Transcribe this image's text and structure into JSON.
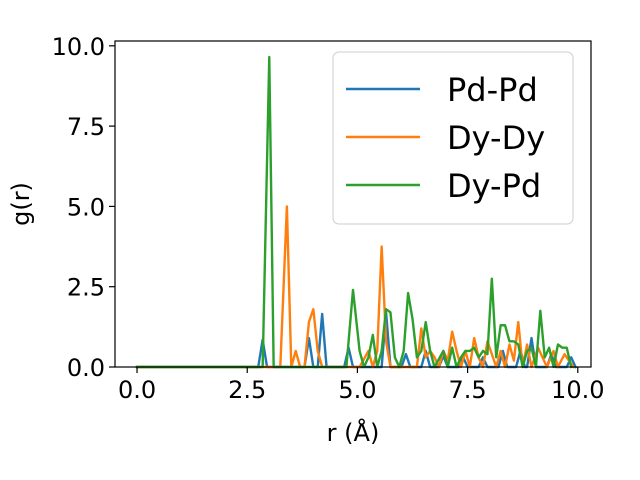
{
  "chart_data": {
    "type": "line",
    "xlabel": "r (Å)",
    "ylabel": "g(r)",
    "xlim": [
      -0.5,
      10.3
    ],
    "ylim": [
      0,
      10.15
    ],
    "xticks": [
      0.0,
      2.5,
      5.0,
      7.5,
      10.0
    ],
    "yticks": [
      0.0,
      2.5,
      5.0,
      7.5,
      10.0
    ],
    "xtick_labels": [
      "0.0",
      "2.5",
      "5.0",
      "7.5",
      "10.0"
    ],
    "ytick_labels": [
      "0.0",
      "2.5",
      "5.0",
      "7.5",
      "10.0"
    ],
    "grid": false,
    "legend": "top-right",
    "series": [
      {
        "name": "Pd-Pd",
        "color": "#1f77b4",
        "points": [
          [
            0.0,
            0
          ],
          [
            2.75,
            0
          ],
          [
            2.85,
            0.85
          ],
          [
            2.95,
            0
          ],
          [
            3.8,
            0
          ],
          [
            3.9,
            0.9
          ],
          [
            4.0,
            0
          ],
          [
            4.1,
            0
          ],
          [
            4.2,
            1.65
          ],
          [
            4.3,
            0
          ],
          [
            4.7,
            0
          ],
          [
            4.8,
            0.6
          ],
          [
            4.9,
            0
          ],
          [
            5.55,
            0
          ],
          [
            5.65,
            1.7
          ],
          [
            5.75,
            0
          ],
          [
            6.0,
            0
          ],
          [
            6.1,
            0.4
          ],
          [
            6.2,
            0
          ],
          [
            6.45,
            0
          ],
          [
            6.55,
            0.5
          ],
          [
            6.65,
            0
          ],
          [
            6.85,
            0
          ],
          [
            6.95,
            0.35
          ],
          [
            7.05,
            0
          ],
          [
            7.3,
            0
          ],
          [
            7.4,
            0.3
          ],
          [
            7.5,
            0
          ],
          [
            7.75,
            0
          ],
          [
            7.85,
            0.3
          ],
          [
            7.95,
            0
          ],
          [
            8.2,
            0
          ],
          [
            8.3,
            0.5
          ],
          [
            8.4,
            0
          ],
          [
            8.6,
            0
          ],
          [
            8.7,
            0.5
          ],
          [
            8.8,
            0
          ],
          [
            8.85,
            0
          ],
          [
            8.95,
            0.9
          ],
          [
            9.05,
            0
          ],
          [
            9.3,
            0
          ],
          [
            9.4,
            0.4
          ],
          [
            9.5,
            0
          ],
          [
            9.75,
            0
          ],
          [
            9.85,
            0.3
          ],
          [
            9.95,
            0
          ]
        ]
      },
      {
        "name": "Dy-Dy",
        "color": "#ff7f0e",
        "points": [
          [
            0.0,
            0
          ],
          [
            3.25,
            0
          ],
          [
            3.4,
            5.0
          ],
          [
            3.5,
            0
          ],
          [
            3.6,
            0.5
          ],
          [
            3.7,
            0
          ],
          [
            3.8,
            0
          ],
          [
            3.9,
            1.4
          ],
          [
            4.0,
            1.8
          ],
          [
            4.1,
            0.5
          ],
          [
            4.2,
            0
          ],
          [
            5.05,
            0
          ],
          [
            5.25,
            0.5
          ],
          [
            5.35,
            0
          ],
          [
            5.45,
            0.5
          ],
          [
            5.55,
            3.75
          ],
          [
            5.65,
            0.8
          ],
          [
            5.75,
            0
          ],
          [
            6.35,
            0
          ],
          [
            6.45,
            1.2
          ],
          [
            6.55,
            0.3
          ],
          [
            6.65,
            0.5
          ],
          [
            6.75,
            0.3
          ],
          [
            6.85,
            0
          ],
          [
            6.95,
            0.5
          ],
          [
            7.05,
            0.2
          ],
          [
            7.15,
            1.1
          ],
          [
            7.25,
            0.5
          ],
          [
            7.35,
            0
          ],
          [
            7.45,
            0.5
          ],
          [
            7.55,
            0
          ],
          [
            7.65,
            0.9
          ],
          [
            7.75,
            0.3
          ],
          [
            7.85,
            0
          ],
          [
            7.95,
            0.8
          ],
          [
            8.05,
            0.4
          ],
          [
            8.15,
            0
          ],
          [
            8.25,
            0.5
          ],
          [
            8.35,
            0
          ],
          [
            8.45,
            0.7
          ],
          [
            8.55,
            0.2
          ],
          [
            8.65,
            1.4
          ],
          [
            8.75,
            0
          ],
          [
            8.85,
            0.7
          ],
          [
            8.95,
            0
          ],
          [
            9.1,
            0.6
          ],
          [
            9.2,
            0.3
          ],
          [
            9.3,
            0
          ],
          [
            9.45,
            0.5
          ],
          [
            9.55,
            0
          ],
          [
            9.7,
            0.4
          ],
          [
            9.8,
            0.2
          ],
          [
            9.9,
            0
          ]
        ]
      },
      {
        "name": "Dy-Pd",
        "color": "#2ca02c",
        "points": [
          [
            0.0,
            0
          ],
          [
            2.85,
            0
          ],
          [
            3.0,
            9.65
          ],
          [
            3.1,
            0
          ],
          [
            4.75,
            0
          ],
          [
            4.9,
            2.4
          ],
          [
            5.05,
            0.5
          ],
          [
            5.15,
            0
          ],
          [
            5.25,
            0.3
          ],
          [
            5.35,
            1.0
          ],
          [
            5.45,
            0
          ],
          [
            5.55,
            0.5
          ],
          [
            5.65,
            1.8
          ],
          [
            5.75,
            1.7
          ],
          [
            5.85,
            0.3
          ],
          [
            5.95,
            0
          ],
          [
            6.05,
            0.5
          ],
          [
            6.15,
            2.3
          ],
          [
            6.25,
            1.5
          ],
          [
            6.35,
            0.3
          ],
          [
            6.45,
            0.5
          ],
          [
            6.55,
            1.4
          ],
          [
            6.65,
            0.5
          ],
          [
            6.75,
            0
          ],
          [
            6.95,
            0.5
          ],
          [
            7.05,
            0
          ],
          [
            7.15,
            0.6
          ],
          [
            7.25,
            0
          ],
          [
            7.35,
            0.3
          ],
          [
            7.45,
            0.5
          ],
          [
            7.55,
            0.5
          ],
          [
            7.65,
            0.6
          ],
          [
            7.75,
            0.3
          ],
          [
            7.85,
            0.5
          ],
          [
            7.95,
            0.4
          ],
          [
            8.05,
            2.75
          ],
          [
            8.15,
            0.3
          ],
          [
            8.25,
            1.3
          ],
          [
            8.35,
            1.3
          ],
          [
            8.45,
            0.8
          ],
          [
            8.55,
            0.8
          ],
          [
            8.65,
            0.7
          ],
          [
            8.75,
            0
          ],
          [
            8.85,
            0.5
          ],
          [
            8.95,
            0.6
          ],
          [
            9.05,
            0
          ],
          [
            9.15,
            1.75
          ],
          [
            9.25,
            0.3
          ],
          [
            9.35,
            0.6
          ],
          [
            9.45,
            0
          ],
          [
            9.55,
            0.7
          ],
          [
            9.65,
            0.6
          ],
          [
            9.75,
            0.6
          ],
          [
            9.85,
            0
          ]
        ]
      }
    ]
  }
}
